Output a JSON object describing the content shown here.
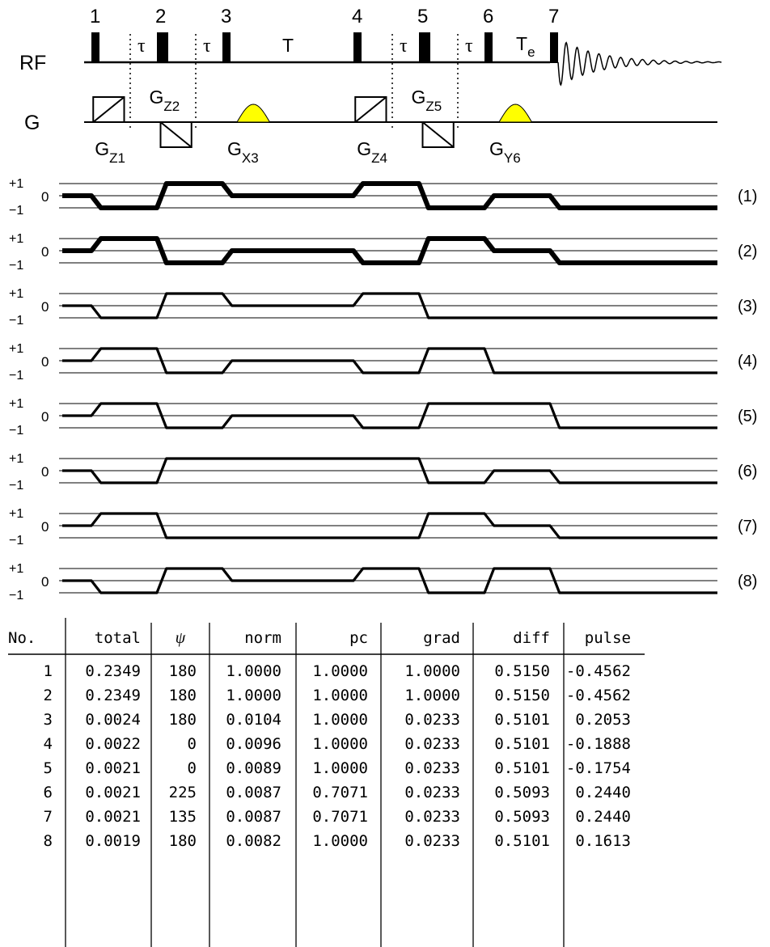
{
  "pulses": [
    {
      "label": "1",
      "t": 2.0,
      "width": 10
    },
    {
      "label": "2",
      "t": 20.0,
      "width": 14
    },
    {
      "label": "3",
      "t": 38.0,
      "width": 10
    },
    {
      "label": "4",
      "t": 74.0,
      "width": 10
    },
    {
      "label": "5",
      "t": 92.0,
      "width": 14
    },
    {
      "label": "6",
      "t": 110.0,
      "width": 10
    },
    {
      "label": "7",
      "t": 128.0,
      "width": 10
    }
  ],
  "rf_label": "RF",
  "g_label": "G",
  "delay_labels": [
    {
      "text": "τ",
      "t": 12.0
    },
    {
      "text": "τ",
      "t": 30.0
    },
    {
      "text": "T",
      "t": 56.0
    },
    {
      "text": "τ",
      "t": 84.0
    },
    {
      "text": "τ",
      "t": 102.0
    }
  ],
  "te_label": {
    "main": "T",
    "sub": "e",
    "t": 120.0
  },
  "gradients": [
    {
      "type": "ramp-up",
      "t0": 2.5,
      "t1": 11.0,
      "main": "G",
      "sub": "Z1",
      "label_pos": "below"
    },
    {
      "type": "ramp-down",
      "t0": 21.0,
      "t1": 29.5,
      "main": "G",
      "sub": "Z2",
      "label_pos": "above"
    },
    {
      "type": "bump",
      "t0": 42.0,
      "t1": 51.0,
      "main": "G",
      "sub": "X3",
      "label_pos": "below"
    },
    {
      "type": "ramp-up",
      "t0": 74.5,
      "t1": 83.0,
      "main": "G",
      "sub": "Z4",
      "label_pos": "below"
    },
    {
      "type": "ramp-down",
      "t0": 93.0,
      "t1": 101.5,
      "main": "G",
      "sub": "Z5",
      "label_pos": "above"
    },
    {
      "type": "bump",
      "t0": 114.0,
      "t1": 123.0,
      "main": "G",
      "sub": "Y6",
      "label_pos": "below"
    }
  ],
  "dotted_markers": [
    12.0,
    30.0,
    84.0,
    102.0
  ],
  "level_ticks": {
    "plus": "+1",
    "zero": "0",
    "minus": "−1"
  },
  "pathways": [
    {
      "label": "(1)",
      "bold": true,
      "levels": [
        0,
        -1,
        1,
        0,
        1,
        -1,
        0,
        -1
      ]
    },
    {
      "label": "(2)",
      "bold": true,
      "levels": [
        0,
        1,
        -1,
        0,
        -1,
        1,
        0,
        -1
      ]
    },
    {
      "label": "(3)",
      "bold": false,
      "levels": [
        0,
        -1,
        1,
        0,
        1,
        -1,
        -1,
        -1
      ]
    },
    {
      "label": "(4)",
      "bold": false,
      "levels": [
        0,
        1,
        -1,
        0,
        -1,
        1,
        -1,
        -1
      ]
    },
    {
      "label": "(5)",
      "bold": false,
      "levels": [
        0,
        1,
        -1,
        0,
        -1,
        1,
        1,
        -1
      ]
    },
    {
      "label": "(6)",
      "bold": false,
      "levels": [
        0,
        -1,
        1,
        1,
        1,
        -1,
        0,
        -1
      ]
    },
    {
      "label": "(7)",
      "bold": false,
      "levels": [
        0,
        1,
        -1,
        -1,
        -1,
        1,
        0,
        -1
      ]
    },
    {
      "label": "(8)",
      "bold": false,
      "levels": [
        0,
        -1,
        1,
        0,
        1,
        -1,
        1,
        -1
      ]
    }
  ],
  "table": {
    "headers": [
      "No.",
      "total",
      "ψ",
      "norm",
      "pc",
      "grad",
      "diff",
      "pulse"
    ],
    "rows": [
      [
        "1",
        "0.2349",
        "180",
        "1.0000",
        "1.0000",
        "1.0000",
        "0.5150",
        "-0.4562"
      ],
      [
        "2",
        "0.2349",
        "180",
        "1.0000",
        "1.0000",
        "1.0000",
        "0.5150",
        "-0.4562"
      ],
      [
        "3",
        "0.0024",
        "180",
        "0.0104",
        "1.0000",
        "0.0233",
        "0.5101",
        "0.2053"
      ],
      [
        "4",
        "0.0022",
        "0",
        "0.0096",
        "1.0000",
        "0.0233",
        "0.5101",
        "-0.1888"
      ],
      [
        "5",
        "0.0021",
        "0",
        "0.0089",
        "1.0000",
        "0.0233",
        "0.5101",
        "-0.1754"
      ],
      [
        "6",
        "0.0021",
        "225",
        "0.0087",
        "0.7071",
        "0.0233",
        "0.5093",
        "0.2440"
      ],
      [
        "7",
        "0.0021",
        "135",
        "0.0087",
        "0.7071",
        "0.0233",
        "0.5093",
        "0.2440"
      ],
      [
        "8",
        "0.0019",
        "180",
        "0.0082",
        "1.0000",
        "0.0233",
        "0.5101",
        "0.1613"
      ]
    ]
  },
  "colors": {
    "ink": "#000000",
    "bump_fill": "#ffff00",
    "background": "#ffffff"
  }
}
